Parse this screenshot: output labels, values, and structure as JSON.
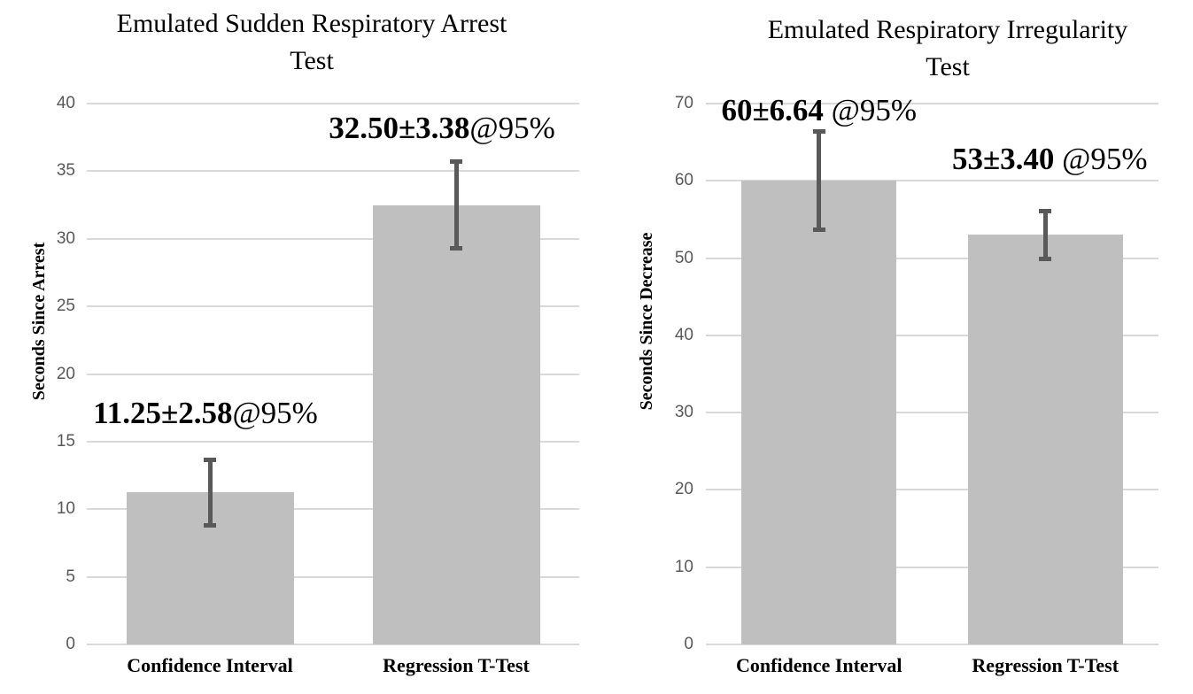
{
  "figure": {
    "background": "#ffffff"
  },
  "colors": {
    "bar_fill": "#bfbfbf",
    "error_bar": "#595959",
    "gridline": "#d9d9d9",
    "tick_label": "#595959",
    "text": "#000000"
  },
  "chart_data": [
    {
      "type": "bar",
      "title": "Emulated Sudden Respiratory Arrest Test",
      "title_lines": [
        "Emulated Sudden Respiratory Arrest",
        "Test"
      ],
      "ylabel": "Seconds Since Arrest",
      "xlabel": "",
      "categories": [
        "Confidence Interval",
        "Regression T-Test"
      ],
      "values": [
        11.25,
        32.5
      ],
      "error_bars": [
        2.58,
        3.38
      ],
      "annotations": [
        "11.25±2.58@95%",
        "32.50±3.38@95%"
      ],
      "annotation_parts": [
        {
          "bold": "11.25±2.58",
          "regular": "@95%"
        },
        {
          "bold": "32.50±3.38",
          "regular": "@95%"
        }
      ],
      "ylim": [
        0,
        40
      ],
      "yticks": [
        0,
        5,
        10,
        15,
        20,
        25,
        30,
        35,
        40
      ],
      "grid": true,
      "legend": null
    },
    {
      "type": "bar",
      "title": "Emulated Respiratory Irregularity Test",
      "title_lines": [
        "Emulated Respiratory Irregularity",
        "Test"
      ],
      "ylabel": "Seconds Since Decrease",
      "xlabel": "",
      "categories": [
        "Confidence Interval",
        "Regression T-Test"
      ],
      "values": [
        60,
        53
      ],
      "error_bars": [
        6.64,
        3.4
      ],
      "annotations": [
        "60±6.64 @95%",
        "53±3.40 @95%"
      ],
      "annotation_parts": [
        {
          "bold": "60±6.64",
          "regular": " @95%"
        },
        {
          "bold": "53±3.40",
          "regular": " @95%"
        }
      ],
      "ylim": [
        0,
        70
      ],
      "yticks": [
        0,
        10,
        20,
        30,
        40,
        50,
        60,
        70
      ],
      "grid": true,
      "legend": null
    }
  ]
}
